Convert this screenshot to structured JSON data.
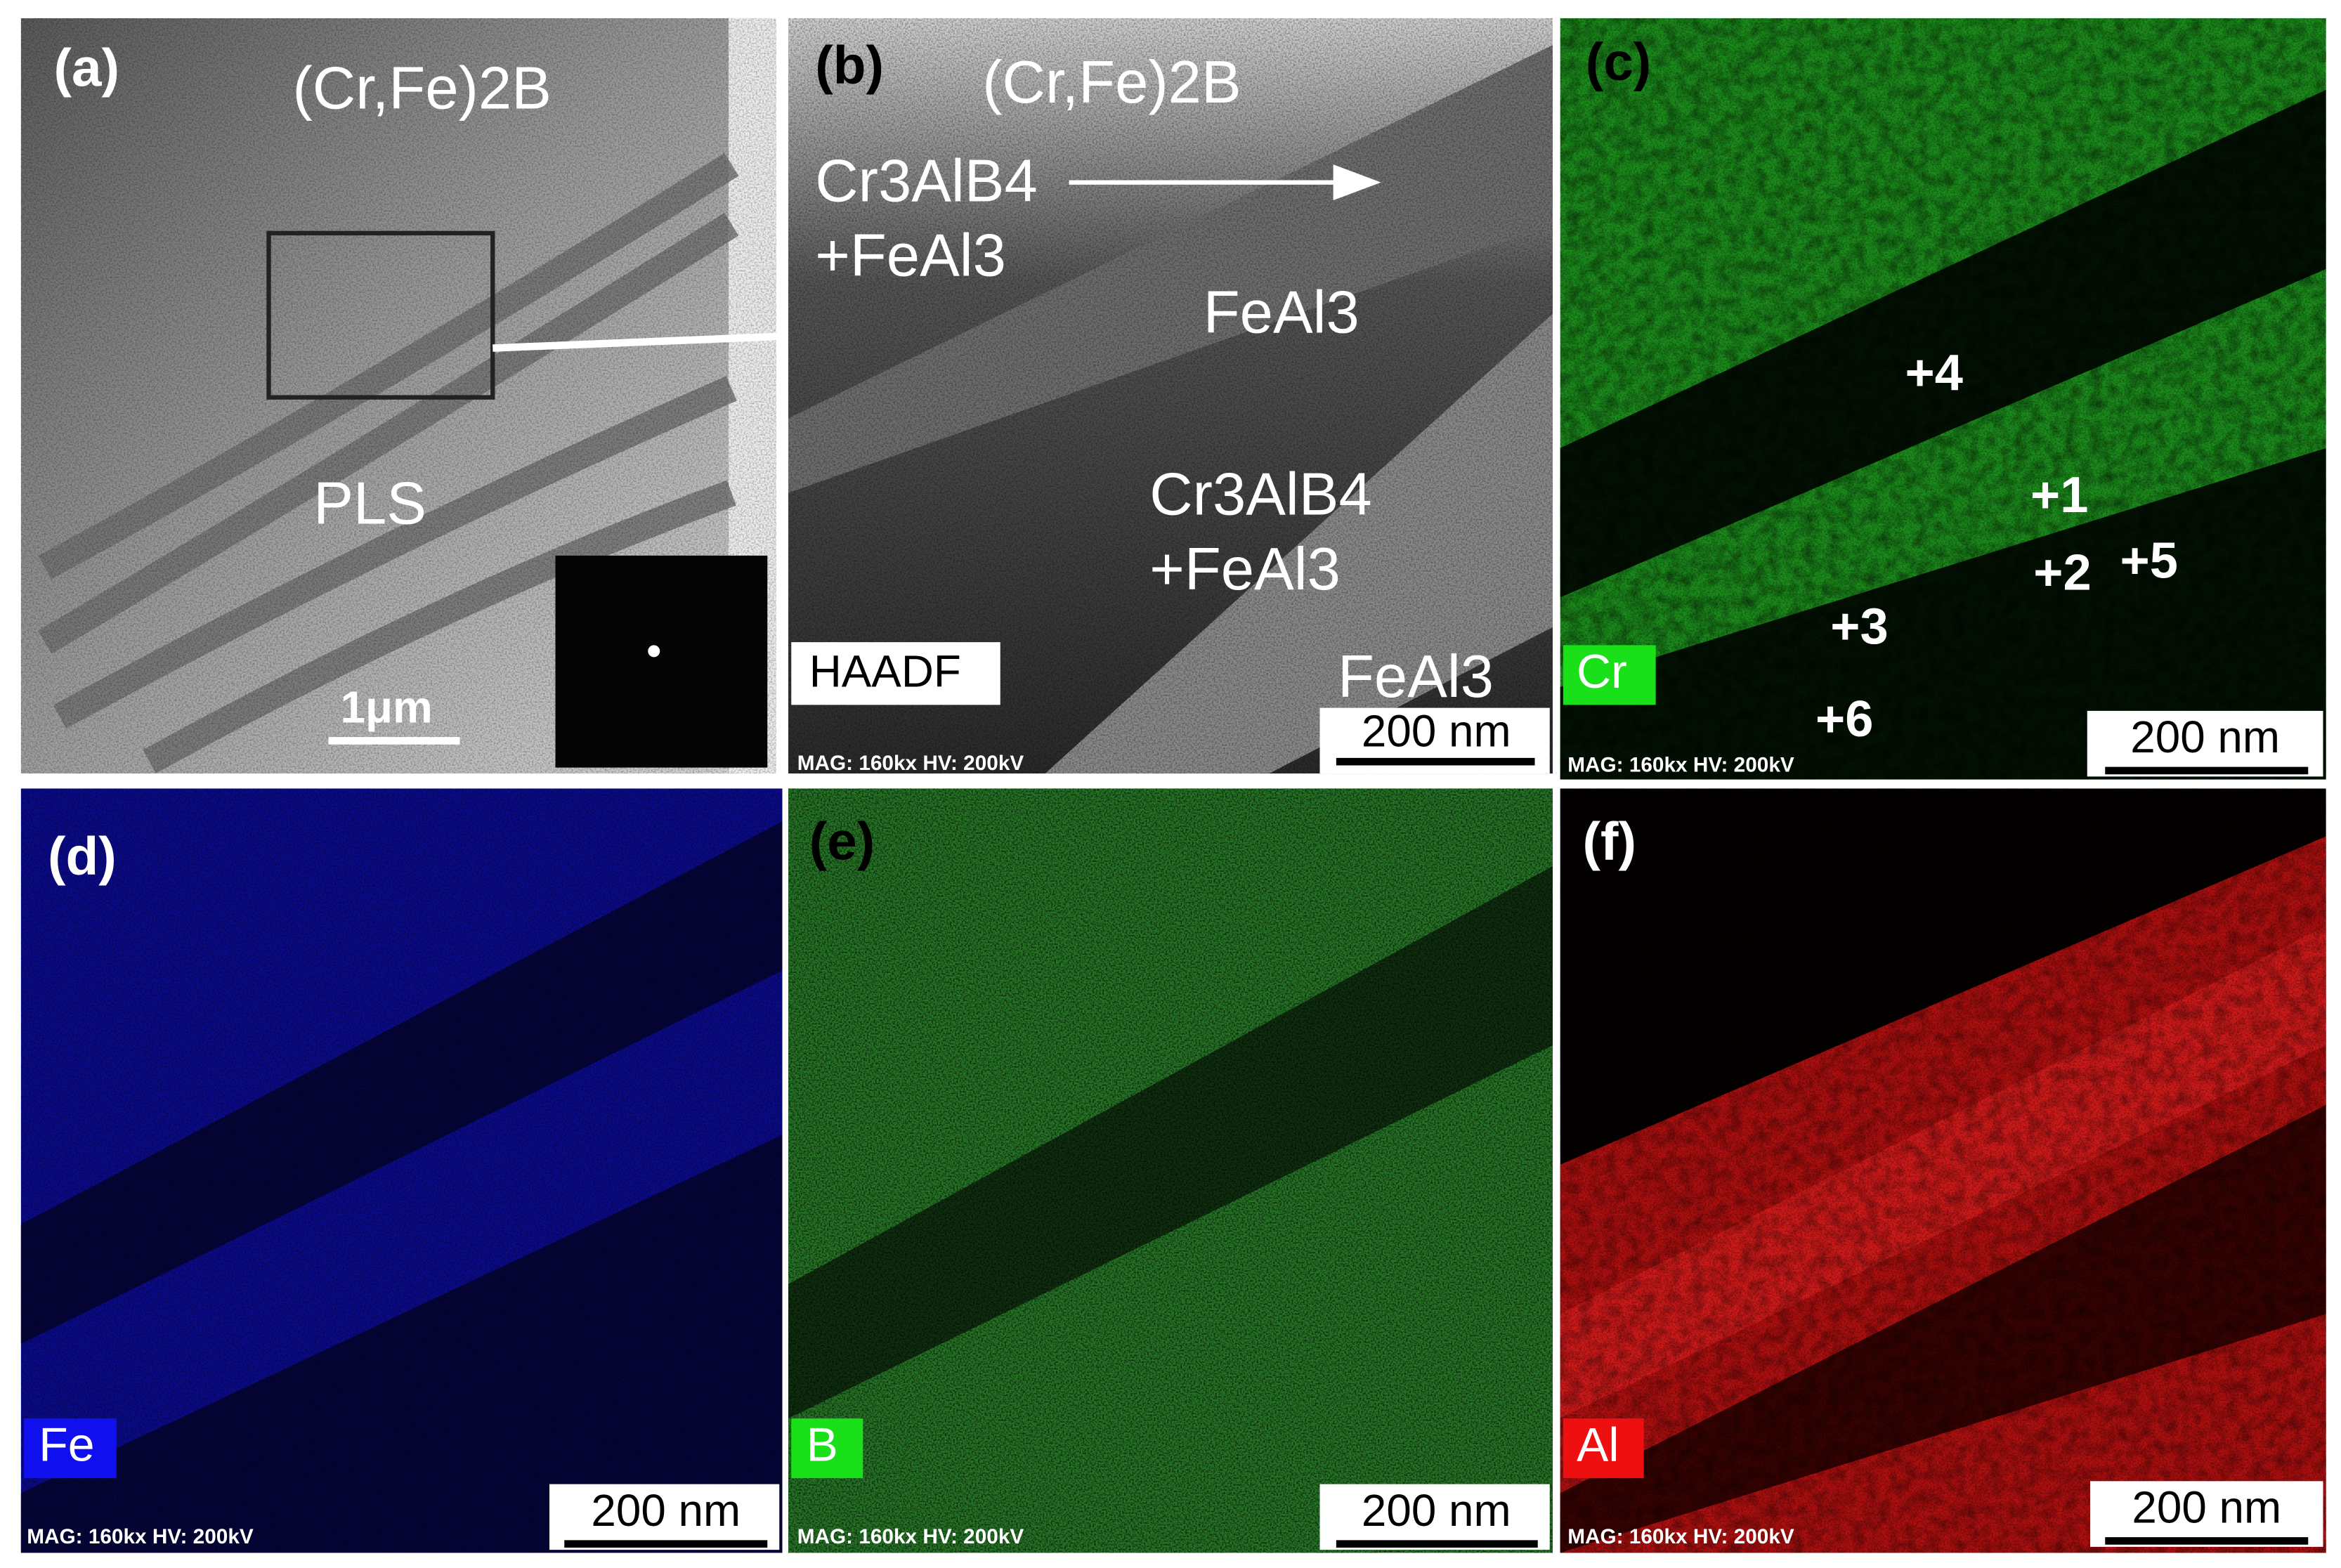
{
  "panels": [
    {
      "label": "(a)",
      "texts": [
        "(Cr,Fe)2B",
        "PLS"
      ],
      "scale_bar": "1μm"
    },
    {
      "label": "(b)",
      "texts": [
        "(Cr,Fe)2B",
        "Cr3AlB4",
        "+FeAl3",
        "FeAl3",
        "Cr3AlB4",
        "+FeAl3",
        "FeAl3"
      ],
      "tag": "HAADF",
      "scale_bar": "200 nm",
      "info": "MAG: 160kx  HV: 200kV"
    },
    {
      "label": "(c)",
      "element": "Cr",
      "points": [
        "+4",
        "+1",
        "+2",
        "+5",
        "+3",
        "+6"
      ],
      "scale_bar": "200 nm",
      "info": "MAG: 160kx  HV: 200kV"
    },
    {
      "label": "(d)",
      "element": "Fe",
      "scale_bar": "200 nm",
      "info": "MAG: 160kx  HV: 200kV"
    },
    {
      "label": "(e)",
      "element": "B",
      "scale_bar": "200 nm",
      "info": "MAG: 160kx  HV: 200kV"
    },
    {
      "label": "(f)",
      "element": "Al",
      "scale_bar": "200 nm",
      "info": "MAG: 160kx  HV: 200kV"
    }
  ]
}
